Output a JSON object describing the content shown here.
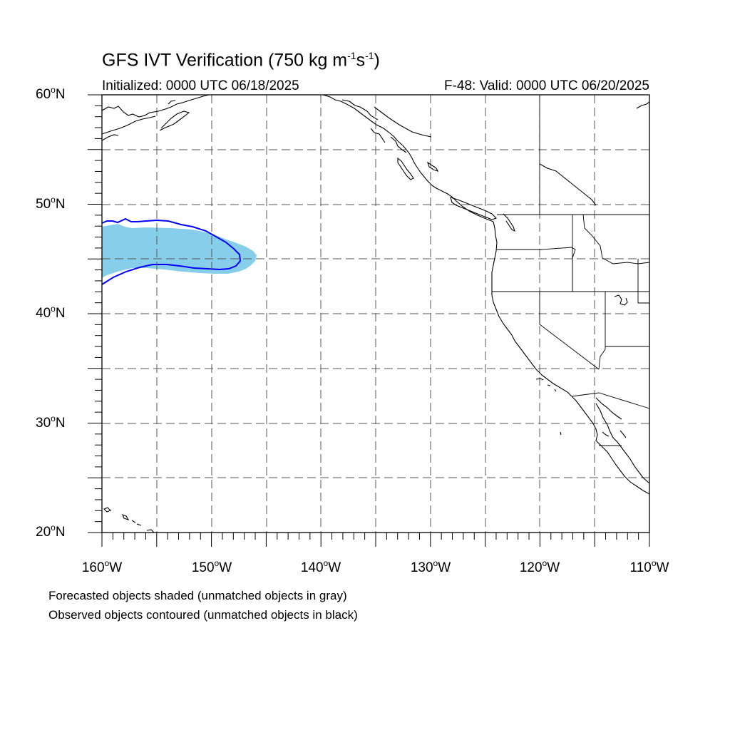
{
  "title": {
    "main": "GFS IVT Verification (750 kg m",
    "exp1": "-1",
    "mid": "s",
    "exp2": "-1",
    "tail": ")"
  },
  "subtitle_left": "Initialized: 0000 UTC 06/18/2025",
  "subtitle_right": "F-48: Valid: 0000 UTC 06/20/2025",
  "lat_labels": [
    {
      "value": "60",
      "suffix": "N"
    },
    {
      "value": "50",
      "suffix": "N"
    },
    {
      "value": "40",
      "suffix": "N"
    },
    {
      "value": "30",
      "suffix": "N"
    },
    {
      "value": "20",
      "suffix": "N"
    }
  ],
  "lon_labels": [
    {
      "value": "160",
      "suffix": "W"
    },
    {
      "value": "150",
      "suffix": "W"
    },
    {
      "value": "140",
      "suffix": "W"
    },
    {
      "value": "130",
      "suffix": "W"
    },
    {
      "value": "120",
      "suffix": "W"
    },
    {
      "value": "110",
      "suffix": "W"
    }
  ],
  "degree_symbol": "o",
  "notes": [
    "Forecasted objects shaded (unmatched objects in gray)",
    "Observed objects contoured (unmatched objects in black)"
  ],
  "map": {
    "lon_range": [
      -160,
      -110
    ],
    "lat_range": [
      20,
      60
    ],
    "forecast_fill_color": "#87ceeb",
    "observed_contour_color": "#0000ff",
    "grid_color": "#555555"
  }
}
